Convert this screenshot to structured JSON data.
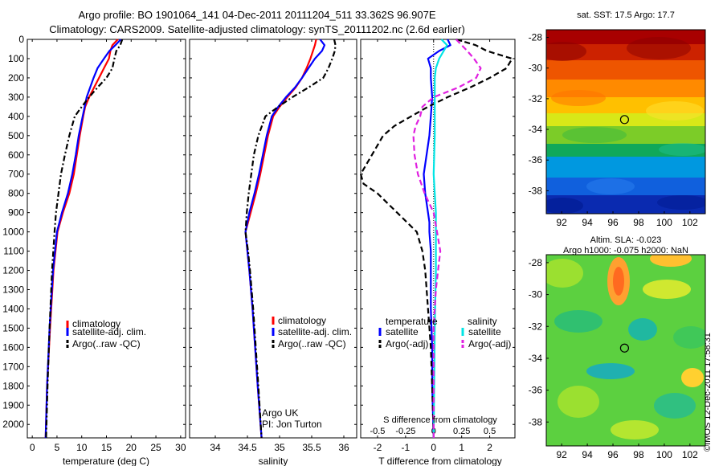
{
  "header": {
    "title_line1": "Argo profile: BO 1901064_141 04-Dec-2011 20111204_511 33.362S 96.907E",
    "title_line2": "Climatology: CARS2009. Satellite-adjusted climatology: synTS_20111202.nc (2.6d earlier)"
  },
  "credit": "©IMOS 12-Dec-2011 17:58:31",
  "colors": {
    "climatology": "#ff0000",
    "satellite": "#0000ff",
    "argo": "#000000",
    "sal_satellite": "#00e5e5",
    "sal_argo": "#e020e0"
  },
  "chart_data": [
    {
      "type": "line",
      "xlabel": "temperature (deg C)",
      "ylabel": "",
      "xlim": [
        -1,
        31
      ],
      "ylim": [
        2070,
        0
      ],
      "xticks": [
        "0",
        "5",
        "10",
        "15",
        "20",
        "25",
        "30"
      ],
      "yticks": [
        "0",
        "100",
        "200",
        "300",
        "400",
        "500",
        "600",
        "700",
        "800",
        "900",
        "1000",
        "1100",
        "1200",
        "1300",
        "1400",
        "1500",
        "1600",
        "1700",
        "1800",
        "1900",
        "2000"
      ],
      "legend": [
        "climatology",
        "satellite-adj. clim.",
        "Argo(..raw -QC)"
      ],
      "series": [
        {
          "name": "climatology",
          "style": "solid",
          "depth": [
            0,
            30,
            60,
            100,
            150,
            200,
            250,
            300,
            350,
            400,
            500,
            600,
            700,
            800,
            900,
            1000,
            1200,
            1500,
            1800,
            2070
          ],
          "values": [
            17.3,
            16.2,
            15.8,
            15.5,
            14.5,
            13.5,
            12.5,
            11.5,
            10.7,
            10.3,
            9.6,
            9.0,
            8.4,
            7.5,
            6.2,
            5.1,
            4.3,
            3.6,
            3.0,
            2.7
          ]
        },
        {
          "name": "satellite-adj. clim.",
          "style": "solid",
          "depth": [
            0,
            30,
            60,
            100,
            150,
            200,
            250,
            300,
            350,
            400,
            500,
            600,
            700,
            800,
            900,
            1000,
            1200,
            1500,
            1800,
            2070
          ],
          "values": [
            17.9,
            16.8,
            15.6,
            14.5,
            13.2,
            12.4,
            11.7,
            11.0,
            10.6,
            10.2,
            9.4,
            8.8,
            8.1,
            7.2,
            6.0,
            5.0,
            4.2,
            3.5,
            3.0,
            2.7
          ]
        },
        {
          "name": "Argo(..raw -QC)",
          "style": "dashdot",
          "depth": [
            0,
            30,
            60,
            100,
            150,
            200,
            250,
            300,
            350,
            400,
            500,
            600,
            700,
            800,
            900,
            1000,
            1200,
            1500,
            1800,
            2070
          ],
          "values": [
            18.2,
            17.8,
            17.0,
            16.6,
            16.2,
            15.0,
            13.2,
            11.5,
            10.0,
            8.6,
            7.5,
            6.6,
            5.8,
            5.3,
            4.8,
            4.5,
            4.0,
            3.5,
            3.1,
            2.8
          ]
        }
      ]
    },
    {
      "type": "line",
      "xlabel": "salinity",
      "ylabel": "",
      "xlim": [
        33.6,
        36.2
      ],
      "ylim": [
        2070,
        0
      ],
      "xticks": [
        "34",
        "34.5",
        "35",
        "35.5",
        "36"
      ],
      "legend": [
        "climatology",
        "satellite-adj. clim.",
        "Argo(..raw -QC)"
      ],
      "annotation": [
        "Argo UK",
        "PI: Jon Turton"
      ],
      "series": [
        {
          "name": "climatology",
          "style": "solid",
          "depth": [
            0,
            30,
            60,
            100,
            150,
            200,
            250,
            300,
            350,
            400,
            500,
            600,
            700,
            800,
            900,
            1000,
            1100,
            1200,
            1400,
            1600,
            1800,
            2070
          ],
          "values": [
            35.57,
            35.55,
            35.52,
            35.48,
            35.42,
            35.35,
            35.25,
            35.12,
            35.0,
            34.9,
            34.82,
            34.76,
            34.7,
            34.63,
            34.55,
            34.47,
            34.5,
            34.53,
            34.58,
            34.62,
            34.66,
            34.72
          ]
        },
        {
          "name": "satellite-adj. clim.",
          "style": "solid",
          "depth": [
            0,
            30,
            60,
            100,
            150,
            200,
            250,
            300,
            350,
            400,
            500,
            600,
            700,
            800,
            900,
            1000,
            1100,
            1200,
            1400,
            1600,
            1800,
            2070
          ],
          "values": [
            35.63,
            35.7,
            35.66,
            35.55,
            35.45,
            35.35,
            35.24,
            35.1,
            34.98,
            34.88,
            34.8,
            34.74,
            34.68,
            34.61,
            34.53,
            34.47,
            34.5,
            34.53,
            34.58,
            34.62,
            34.66,
            34.72
          ]
        },
        {
          "name": "Argo(..raw -QC)",
          "style": "dashdot",
          "depth": [
            0,
            30,
            60,
            100,
            150,
            200,
            250,
            300,
            350,
            400,
            500,
            600,
            700,
            800,
            900,
            1000,
            1100,
            1200,
            1400,
            1600,
            1800,
            2070
          ],
          "values": [
            35.85,
            35.87,
            35.86,
            35.82,
            35.76,
            35.68,
            35.45,
            35.2,
            34.98,
            34.78,
            34.67,
            34.6,
            34.56,
            34.52,
            34.49,
            34.47,
            34.51,
            34.54,
            34.59,
            34.63,
            34.67,
            34.72
          ]
        }
      ]
    },
    {
      "type": "line",
      "xlabel": "T difference from climatology",
      "x2label": "S difference from climatology",
      "ylabel": "",
      "xlim": [
        -2.6,
        2.9
      ],
      "ylim": [
        2070,
        0
      ],
      "xticks": [
        "-2",
        "-1",
        "0",
        "1",
        "2"
      ],
      "x2lim": [
        -0.65,
        0.725
      ],
      "x2ticks": [
        "-0.5",
        "-0.25",
        "0",
        "0.25",
        "0.5"
      ],
      "legend_temperature_title": "temperature",
      "legend_salinity_title": "salinity",
      "legend_temperature": [
        "satellite",
        "Argo(-adj)"
      ],
      "legend_salinity": [
        "satellite",
        "Argo(-adj)"
      ],
      "series": [
        {
          "name": "T satellite",
          "axis": "T",
          "style": "solid",
          "depth": [
            0,
            30,
            60,
            100,
            150,
            200,
            300,
            400,
            500,
            600,
            700,
            800,
            900,
            950,
            1000,
            1100,
            1200,
            1400,
            1600,
            1800,
            2070
          ],
          "values": [
            0.5,
            0.6,
            0.2,
            -0.2,
            -0.1,
            -0.1,
            -0.05,
            -0.1,
            -0.15,
            -0.25,
            -0.35,
            -0.3,
            -0.2,
            -0.15,
            -0.15,
            -0.1,
            -0.1,
            -0.1,
            -0.05,
            -0.05,
            0
          ]
        },
        {
          "name": "T Argo(-adj)",
          "axis": "T",
          "style": "dashed",
          "depth": [
            0,
            30,
            60,
            100,
            150,
            200,
            250,
            300,
            350,
            400,
            450,
            500,
            600,
            700,
            750,
            800,
            900,
            1000,
            1100,
            1200,
            1400,
            1600,
            1800,
            2070
          ],
          "values": [
            0.8,
            1.5,
            1.9,
            2.8,
            2.6,
            2.0,
            1.3,
            0.5,
            -0.2,
            -0.8,
            -1.4,
            -1.8,
            -2.2,
            -2.6,
            -2.5,
            -2.0,
            -1.3,
            -0.6,
            -0.4,
            -0.3,
            -0.2,
            -0.1,
            -0.05,
            0
          ]
        },
        {
          "name": "S satellite",
          "axis": "S",
          "style": "solid",
          "depth": [
            0,
            30,
            60,
            100,
            150,
            200,
            300,
            400,
            500,
            600,
            700,
            800,
            900,
            1000,
            1200,
            1500,
            1800,
            2070
          ],
          "values": [
            0.07,
            0.12,
            0.09,
            0.05,
            0.02,
            0.01,
            0.01,
            0.01,
            0.01,
            0.005,
            0.0,
            0.01,
            0.02,
            0.02,
            0.02,
            0.01,
            0.005,
            0
          ]
        },
        {
          "name": "S Argo(-adj)",
          "axis": "S",
          "style": "dashed",
          "depth": [
            0,
            30,
            60,
            100,
            150,
            200,
            250,
            300,
            350,
            400,
            450,
            500,
            600,
            700,
            800,
            900,
            1000,
            1100,
            1200,
            1300,
            1400,
            1500,
            1600,
            1800,
            2070
          ],
          "values": [
            0.2,
            0.25,
            0.3,
            0.36,
            0.42,
            0.38,
            0.22,
            0.0,
            -0.1,
            -0.12,
            -0.16,
            -0.18,
            -0.17,
            -0.14,
            -0.08,
            0.0,
            0.03,
            0.06,
            0.04,
            0.02,
            0.01,
            0.0,
            0.0,
            0.0,
            0.0
          ]
        }
      ]
    },
    {
      "type": "heatmap",
      "title": "sat. SST: 17.5  Argo: 17.7",
      "xlim": [
        90.8,
        103.2
      ],
      "ylim": [
        -39.5,
        -27.5
      ],
      "xticks": [
        "92",
        "94",
        "96",
        "98",
        "100",
        "102"
      ],
      "yticks": [
        "-28",
        "-30",
        "-32",
        "-34",
        "-36",
        "-38"
      ],
      "marker": {
        "lon": 96.9,
        "lat": -33.36
      }
    },
    {
      "type": "heatmap",
      "title_line1": "Altim. SLA: -0.023",
      "title_line2": "Argo h1000: -0.075  h2000: NaN",
      "xlim": [
        90.8,
        103.2
      ],
      "ylim": [
        -39.5,
        -27.5
      ],
      "xticks": [
        "92",
        "94",
        "96",
        "98",
        "100",
        "102"
      ],
      "yticks": [
        "-28",
        "-30",
        "-32",
        "-34",
        "-36",
        "-38"
      ],
      "marker": {
        "lon": 96.9,
        "lat": -33.36
      }
    }
  ]
}
